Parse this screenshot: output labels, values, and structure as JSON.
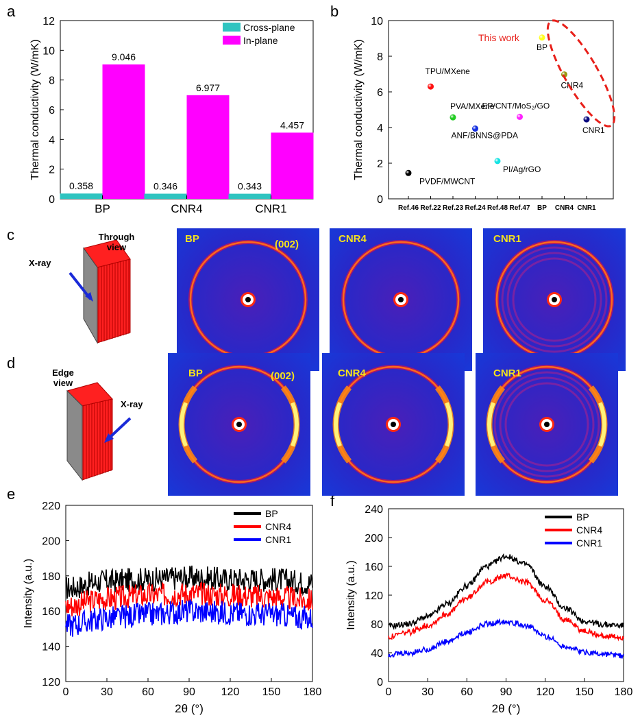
{
  "panel_labels": {
    "a": "a",
    "b": "b",
    "c": "c",
    "d": "d",
    "e": "e",
    "f": "f"
  },
  "colors": {
    "cross_plane": "#2fc4c0",
    "in_plane": "#ff00ff",
    "bp": "#000000",
    "cnr4": "#ff0000",
    "cnr1": "#0000ff",
    "highlight": "#e8201a",
    "xrd_text": "#f5e21c"
  },
  "chart_data": [
    {
      "id": "a",
      "type": "bar",
      "categories": [
        "BP",
        "CNR4",
        "CNR1"
      ],
      "series": [
        {
          "name": "Cross-plane",
          "values": [
            0.358,
            0.346,
            0.343
          ],
          "labels": [
            "0.358",
            "0.346",
            "0.343"
          ]
        },
        {
          "name": "In-plane",
          "values": [
            9.046,
            6.977,
            4.457
          ],
          "labels": [
            "9.046",
            "6.977",
            "4.457"
          ]
        }
      ],
      "ylabel": "Thermal conductivity (W/mK)",
      "ylim": [
        0,
        12
      ],
      "yticks": [
        "0",
        "2",
        "4",
        "6",
        "8",
        "10",
        "12"
      ],
      "legend": "top-right"
    },
    {
      "id": "b",
      "type": "scatter",
      "categories": [
        "Ref.46",
        "Ref.22",
        "Ref.23",
        "Ref.24",
        "Ref.48",
        "Ref.47",
        "BP",
        "CNR4",
        "CNR1"
      ],
      "points": [
        {
          "label": "PVDF/MWCNT",
          "value": 1.45,
          "color": "#000000"
        },
        {
          "label": "TPU/MXene",
          "value": 6.3,
          "color": "#ff1010"
        },
        {
          "label": "PVA/MXene",
          "value": 4.57,
          "color": "#22cc22"
        },
        {
          "label": "ANF/BNNS@PDA",
          "value": 3.94,
          "color": "#1530e0"
        },
        {
          "label": "PI/Ag/rGO",
          "value": 2.12,
          "color": "#16e3e3"
        },
        {
          "label": "EP/CNT/MoS₂/GO",
          "value": 4.6,
          "color": "#ff22ff"
        },
        {
          "label": "BP",
          "value": 9.046,
          "color": "#ffff22"
        },
        {
          "label": "CNR4",
          "value": 6.977,
          "color": "#999912"
        },
        {
          "label": "CNR1",
          "value": 4.457,
          "color": "#0a0a80"
        }
      ],
      "ylabel": "Thermal conductivity (W/mK)",
      "ylim": [
        0,
        10
      ],
      "yticks": [
        "0",
        "2",
        "4",
        "6",
        "8",
        "10"
      ],
      "annotation": "This work"
    },
    {
      "id": "e",
      "type": "line",
      "xlabel": "2θ (°)",
      "ylabel": "Intensity (a.u.)",
      "xlim": [
        0,
        180
      ],
      "ylim": [
        120,
        220
      ],
      "xticks": [
        "0",
        "30",
        "60",
        "90",
        "120",
        "150",
        "180"
      ],
      "yticks": [
        "120",
        "140",
        "160",
        "180",
        "200",
        "220"
      ],
      "legend": "top-right",
      "series": [
        {
          "name": "BP",
          "x": [
            0,
            30,
            60,
            90,
            120,
            150,
            180
          ],
          "y": [
            173,
            177,
            178,
            179,
            178,
            178,
            176
          ]
        },
        {
          "name": "CNR4",
          "x": [
            0,
            30,
            60,
            90,
            120,
            150,
            180
          ],
          "y": [
            163,
            167,
            169,
            170,
            169,
            168,
            166
          ]
        },
        {
          "name": "CNR1",
          "x": [
            0,
            30,
            60,
            90,
            120,
            150,
            180
          ],
          "y": [
            152,
            156,
            158,
            160,
            159,
            158,
            156
          ]
        }
      ]
    },
    {
      "id": "f",
      "type": "line",
      "xlabel": "2θ (°)",
      "ylabel": "Intensity (a.u.)",
      "xlim": [
        0,
        180
      ],
      "ylim": [
        0,
        240
      ],
      "xticks": [
        "0",
        "30",
        "60",
        "90",
        "120",
        "150",
        "180"
      ],
      "yticks": [
        "0",
        "40",
        "80",
        "120",
        "160",
        "200",
        "240"
      ],
      "legend": "top-right",
      "series": [
        {
          "name": "BP",
          "x": [
            0,
            15,
            30,
            45,
            60,
            75,
            90,
            105,
            120,
            135,
            150,
            165,
            180
          ],
          "y": [
            77,
            80,
            90,
            108,
            133,
            160,
            174,
            163,
            132,
            102,
            84,
            79,
            78
          ]
        },
        {
          "name": "CNR4",
          "x": [
            0,
            15,
            30,
            45,
            60,
            75,
            90,
            105,
            120,
            135,
            150,
            165,
            180
          ],
          "y": [
            62,
            68,
            78,
            94,
            116,
            138,
            147,
            138,
            113,
            87,
            70,
            63,
            61
          ]
        },
        {
          "name": "CNR1",
          "x": [
            0,
            15,
            30,
            45,
            60,
            75,
            90,
            105,
            120,
            135,
            150,
            165,
            180
          ],
          "y": [
            37,
            39,
            45,
            55,
            68,
            80,
            84,
            78,
            63,
            49,
            41,
            38,
            36
          ]
        }
      ]
    }
  ],
  "xrd": {
    "through": {
      "diagram_label": "Through view",
      "xray_label": "X-ray",
      "samples": [
        "BP",
        "CNR4",
        "CNR1"
      ],
      "peak_label": "(002)"
    },
    "edge": {
      "diagram_label": "Edge view",
      "xray_label": "X-ray",
      "samples": [
        "BP",
        "CNR4",
        "CNR1"
      ],
      "peak_label": "(002)"
    }
  }
}
